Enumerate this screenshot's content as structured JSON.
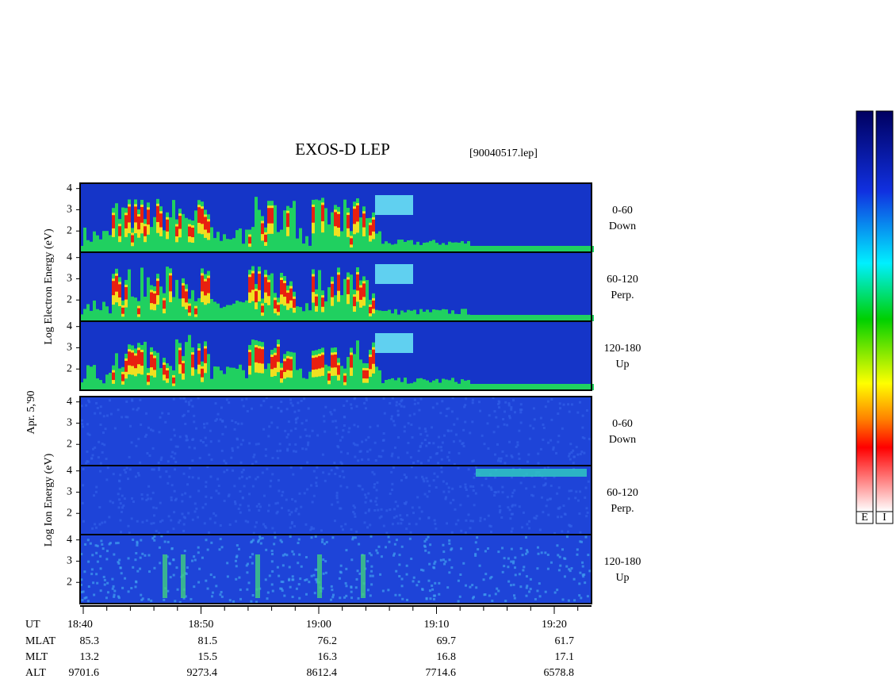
{
  "chart_data": {
    "type": "spectrogram",
    "title": "EXOS-D LEP",
    "file": "[90040517.lep]",
    "date": "Apr. 5,'90",
    "groups": [
      {
        "ylabel": "Log Electron Energy (eV)",
        "colorbar": "E",
        "ylim": [
          1,
          4.25
        ],
        "yticks": [
          2,
          3,
          4
        ],
        "panels": [
          {
            "pitch": "0-60",
            "direction": "Down"
          },
          {
            "pitch": "60-120",
            "direction": "Perp."
          },
          {
            "pitch": "120-180",
            "direction": "Up"
          }
        ]
      },
      {
        "ylabel": "Log Ion Energy (eV)",
        "colorbar": "I",
        "ylim": [
          1,
          4.25
        ],
        "yticks": [
          2,
          3,
          4
        ],
        "panels": [
          {
            "pitch": "0-60",
            "direction": "Down"
          },
          {
            "pitch": "60-120",
            "direction": "Perp."
          },
          {
            "pitch": "120-180",
            "direction": "Up"
          }
        ]
      }
    ],
    "xlabel": "UT",
    "xticks": [
      "18:40",
      "18:50",
      "19:00",
      "19:10",
      "19:20"
    ],
    "ephemeris": [
      {
        "name": "MLAT",
        "values": [
          85.3,
          81.5,
          76.2,
          69.7,
          61.7
        ]
      },
      {
        "name": "MLT",
        "values": [
          13.2,
          15.5,
          16.3,
          16.8,
          17.1
        ]
      },
      {
        "name": "ALT",
        "values": [
          9701.6,
          9273.4,
          8612.4,
          7714.6,
          6578.8
        ]
      }
    ]
  }
}
